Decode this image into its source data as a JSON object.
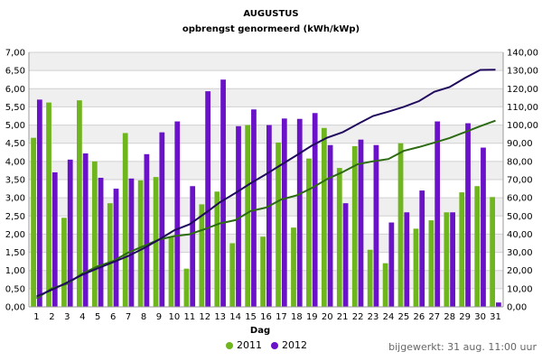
{
  "chart_data": {
    "type": "bar",
    "title": "AUGUSTUS",
    "subtitle": "opbrengst genormeerd (kWh/kWp)",
    "xlabel": "Dag",
    "categories": [
      "1",
      "2",
      "3",
      "4",
      "5",
      "6",
      "7",
      "8",
      "9",
      "10",
      "11",
      "12",
      "13",
      "14",
      "15",
      "16",
      "17",
      "18",
      "19",
      "20",
      "21",
      "22",
      "23",
      "24",
      "25",
      "26",
      "27",
      "28",
      "29",
      "30",
      "31"
    ],
    "ylim_left": [
      0,
      7
    ],
    "ylim_right": [
      0,
      140
    ],
    "left_ticks": [
      "0,00",
      "0,50",
      "1,00",
      "1,50",
      "2,00",
      "2,50",
      "3,00",
      "3,50",
      "4,00",
      "4,50",
      "5,00",
      "5,50",
      "6,00",
      "6,50",
      "7,00"
    ],
    "right_ticks": [
      "0,00",
      "10,00",
      "20,00",
      "30,00",
      "40,00",
      "50,00",
      "60,00",
      "70,00",
      "80,00",
      "90,00",
      "100,00",
      "110,00",
      "120,00",
      "130,00",
      "140,00"
    ],
    "series": [
      {
        "name": "2011",
        "color": "#6fb51d",
        "values": [
          4.65,
          5.62,
          2.45,
          5.68,
          4.0,
          2.85,
          4.78,
          3.48,
          3.57,
          1.93,
          1.05,
          2.82,
          3.17,
          1.75,
          5.0,
          1.93,
          4.52,
          2.18,
          4.08,
          4.92,
          3.82,
          4.42,
          1.57,
          1.2,
          4.5,
          2.15,
          2.38,
          2.6,
          3.15,
          3.32,
          3.02
        ]
      },
      {
        "name": "2012",
        "color": "#6a12c7",
        "values": [
          5.7,
          3.7,
          4.05,
          4.22,
          3.55,
          3.25,
          3.53,
          4.2,
          4.8,
          5.1,
          3.32,
          5.93,
          6.25,
          4.97,
          5.43,
          5.0,
          5.18,
          5.17,
          5.33,
          4.45,
          2.85,
          4.6,
          4.45,
          2.32,
          2.6,
          3.2,
          5.1,
          2.6,
          5.05,
          4.38,
          0.12
        ]
      }
    ],
    "cumulative_series": [
      {
        "name": "2011",
        "color": "#2c6b12",
        "axis": "right",
        "values": [
          4.6,
          10.2,
          12.7,
          18.3,
          22.3,
          25.1,
          29.9,
          33.4,
          37.0,
          38.9,
          39.9,
          42.8,
          45.9,
          47.7,
          52.7,
          54.6,
          59.1,
          61.3,
          65.4,
          70.3,
          74.1,
          78.5,
          80.1,
          81.3,
          85.8,
          87.9,
          90.3,
          92.9,
          96.1,
          99.4,
          102.4
        ]
      },
      {
        "name": "2012",
        "color": "#200a5e",
        "axis": "right",
        "values": [
          5.7,
          9.4,
          13.4,
          17.7,
          21.2,
          24.5,
          28.0,
          32.2,
          37.0,
          42.1,
          45.4,
          51.4,
          57.6,
          62.6,
          68.0,
          73.0,
          78.2,
          83.4,
          88.7,
          93.1,
          96.0,
          100.6,
          105.0,
          107.4,
          110.0,
          113.2,
          118.3,
          120.9,
          125.9,
          130.3,
          130.4
        ]
      }
    ],
    "grid": true,
    "legend_position": "bottom-center"
  },
  "legend": {
    "item1": "2011",
    "item2": "2012"
  },
  "updated_text": "bijgewerkt: 31 aug. 11:00 uur"
}
